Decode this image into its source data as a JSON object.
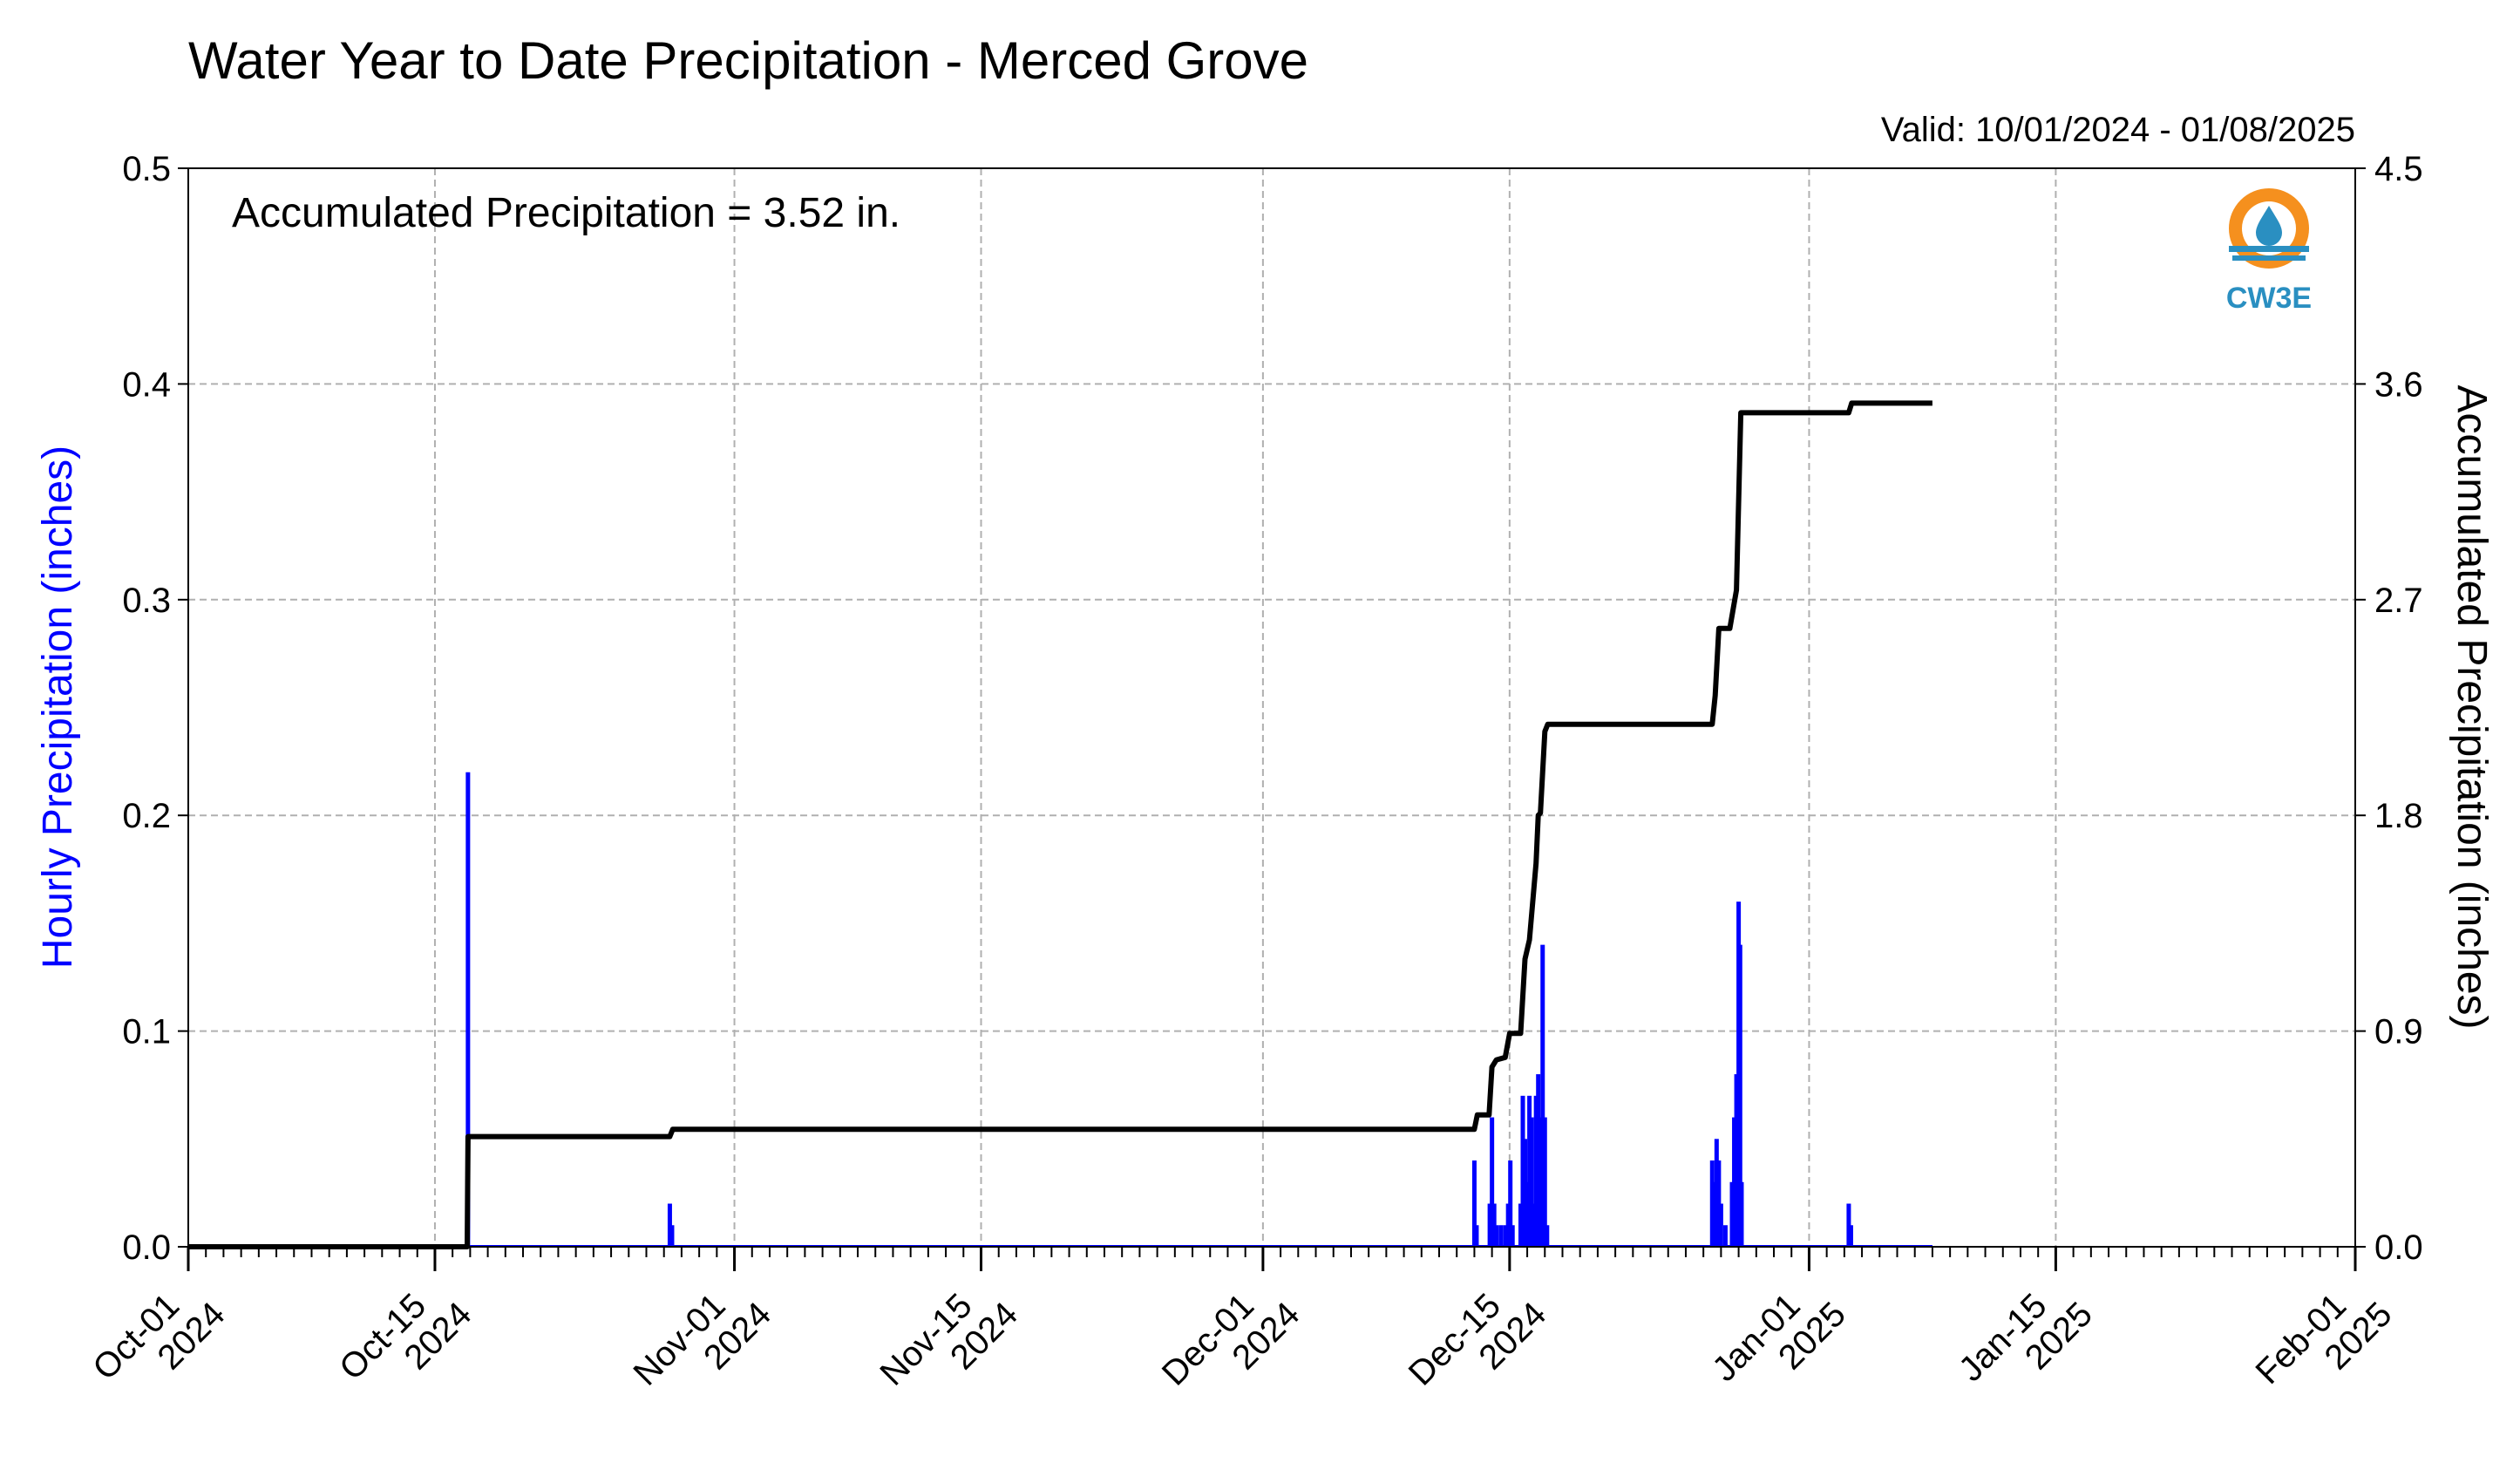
{
  "colors": {
    "hourly_bars": "#0000ff",
    "accumulated_line": "#000000",
    "grid": "#b0b0b0",
    "left_axis_label": "#0000ff",
    "logo_orange": "#f5901e",
    "logo_blue": "#2a8fc1"
  },
  "logo": {
    "text": "CW3E",
    "icon": "water-drop-logo-icon"
  },
  "chart_data": {
    "type": "bar+line",
    "title": "Water Year to Date Precipitation - Merced Grove",
    "valid_text": "Valid: 10/01/2024 - 01/08/2025",
    "annotation": "Accumulated Precipitation = 3.52 in.",
    "left_ylabel": "Hourly Precipitation (inches)",
    "right_ylabel": "Accumulated Precipitation (inches)",
    "left_ylim": [
      0,
      0.5
    ],
    "right_ylim": [
      0,
      4.5
    ],
    "left_ticks": [
      "0.0",
      "0.1",
      "0.2",
      "0.3",
      "0.4",
      "0.5"
    ],
    "right_ticks": [
      "0.0",
      "0.9",
      "1.8",
      "2.7",
      "3.6",
      "4.5"
    ],
    "xlim": [
      "2024-10-01",
      "2025-02-01"
    ],
    "x_ticks": [
      {
        "date": "2024-10-01",
        "label": "Oct-01\n2024"
      },
      {
        "date": "2024-10-15",
        "label": "Oct-15\n2024"
      },
      {
        "date": "2024-11-01",
        "label": "Nov-01\n2024"
      },
      {
        "date": "2024-11-15",
        "label": "Nov-15\n2024"
      },
      {
        "date": "2024-12-01",
        "label": "Dec-01\n2024"
      },
      {
        "date": "2024-12-15",
        "label": "Dec-15\n2024"
      },
      {
        "date": "2025-01-01",
        "label": "Jan-01\n2025"
      },
      {
        "date": "2025-01-15",
        "label": "Jan-15\n2025"
      },
      {
        "date": "2025-02-01",
        "label": "Feb-01\n2025"
      }
    ],
    "grid": true,
    "series": [
      {
        "name": "Hourly Precipitation",
        "type": "bar",
        "axis": "left",
        "points": [
          {
            "t": "2024-10-16T20:00",
            "v": 0.02
          },
          {
            "t": "2024-10-16T21:00",
            "v": 0.22
          },
          {
            "t": "2024-10-28T08:00",
            "v": 0.02
          },
          {
            "t": "2024-10-28T11:00",
            "v": 0.01
          },
          {
            "t": "2024-12-13T00:00",
            "v": 0.04
          },
          {
            "t": "2024-12-13T03:00",
            "v": 0.01
          },
          {
            "t": "2024-12-13T21:00",
            "v": 0.02
          },
          {
            "t": "2024-12-14T00:00",
            "v": 0.06
          },
          {
            "t": "2024-12-14T03:00",
            "v": 0.02
          },
          {
            "t": "2024-12-14T06:00",
            "v": 0.01
          },
          {
            "t": "2024-12-14T12:00",
            "v": 0.01
          },
          {
            "t": "2024-12-14T18:00",
            "v": 0.01
          },
          {
            "t": "2024-12-14T22:00",
            "v": 0.02
          },
          {
            "t": "2024-12-15T01:00",
            "v": 0.04
          },
          {
            "t": "2024-12-15T04:00",
            "v": 0.01
          },
          {
            "t": "2024-12-15T15:00",
            "v": 0.02
          },
          {
            "t": "2024-12-15T18:00",
            "v": 0.07
          },
          {
            "t": "2024-12-15T21:00",
            "v": 0.05
          },
          {
            "t": "2024-12-16T00:00",
            "v": 0.03
          },
          {
            "t": "2024-12-16T03:00",
            "v": 0.07
          },
          {
            "t": "2024-12-16T06:00",
            "v": 0.06
          },
          {
            "t": "2024-12-16T09:00",
            "v": 0.02
          },
          {
            "t": "2024-12-16T12:00",
            "v": 0.07
          },
          {
            "t": "2024-12-16T15:00",
            "v": 0.08
          },
          {
            "t": "2024-12-16T18:00",
            "v": 0.06
          },
          {
            "t": "2024-12-16T21:00",
            "v": 0.14
          },
          {
            "t": "2024-12-17T00:00",
            "v": 0.06
          },
          {
            "t": "2024-12-17T03:00",
            "v": 0.01
          },
          {
            "t": "2024-12-26T12:00",
            "v": 0.04
          },
          {
            "t": "2024-12-26T15:00",
            "v": 0.03
          },
          {
            "t": "2024-12-26T18:00",
            "v": 0.05
          },
          {
            "t": "2024-12-26T21:00",
            "v": 0.04
          },
          {
            "t": "2024-12-27T00:00",
            "v": 0.02
          },
          {
            "t": "2024-12-27T06:00",
            "v": 0.01
          },
          {
            "t": "2024-12-27T15:00",
            "v": 0.03
          },
          {
            "t": "2024-12-27T18:00",
            "v": 0.06
          },
          {
            "t": "2024-12-27T21:00",
            "v": 0.08
          },
          {
            "t": "2024-12-28T00:00",
            "v": 0.16
          },
          {
            "t": "2024-12-28T02:00",
            "v": 0.14
          },
          {
            "t": "2024-12-28T04:00",
            "v": 0.03
          },
          {
            "t": "2025-01-03T06:00",
            "v": 0.02
          },
          {
            "t": "2025-01-03T09:00",
            "v": 0.01
          }
        ]
      },
      {
        "name": "Accumulated Precipitation",
        "type": "line",
        "axis": "right",
        "points": [
          {
            "t": "2024-10-01T00:00",
            "v": 0.0
          },
          {
            "t": "2024-10-16T20:00",
            "v": 0.0
          },
          {
            "t": "2024-10-16T21:00",
            "v": 0.46
          },
          {
            "t": "2024-10-28T08:00",
            "v": 0.46
          },
          {
            "t": "2024-10-28T12:00",
            "v": 0.49
          },
          {
            "t": "2024-12-13T00:00",
            "v": 0.49
          },
          {
            "t": "2024-12-13T04:00",
            "v": 0.55
          },
          {
            "t": "2024-12-13T20:00",
            "v": 0.55
          },
          {
            "t": "2024-12-14T00:00",
            "v": 0.75
          },
          {
            "t": "2024-12-14T06:00",
            "v": 0.78
          },
          {
            "t": "2024-12-14T18:00",
            "v": 0.79
          },
          {
            "t": "2024-12-15T00:00",
            "v": 0.89
          },
          {
            "t": "2024-12-15T15:00",
            "v": 0.89
          },
          {
            "t": "2024-12-15T21:00",
            "v": 1.2
          },
          {
            "t": "2024-12-16T03:00",
            "v": 1.28
          },
          {
            "t": "2024-12-16T12:00",
            "v": 1.6
          },
          {
            "t": "2024-12-16T15:00",
            "v": 1.8
          },
          {
            "t": "2024-12-16T18:00",
            "v": 1.81
          },
          {
            "t": "2024-12-17T00:00",
            "v": 2.15
          },
          {
            "t": "2024-12-17T04:00",
            "v": 2.18
          },
          {
            "t": "2024-12-26T12:00",
            "v": 2.18
          },
          {
            "t": "2024-12-26T16:00",
            "v": 2.3
          },
          {
            "t": "2024-12-26T21:00",
            "v": 2.58
          },
          {
            "t": "2024-12-27T12:00",
            "v": 2.58
          },
          {
            "t": "2024-12-27T21:00",
            "v": 2.74
          },
          {
            "t": "2024-12-28T03:00",
            "v": 3.48
          },
          {
            "t": "2025-01-03T06:00",
            "v": 3.48
          },
          {
            "t": "2025-01-03T10:00",
            "v": 3.52
          },
          {
            "t": "2025-01-08T00:00",
            "v": 3.52
          }
        ]
      }
    ]
  }
}
